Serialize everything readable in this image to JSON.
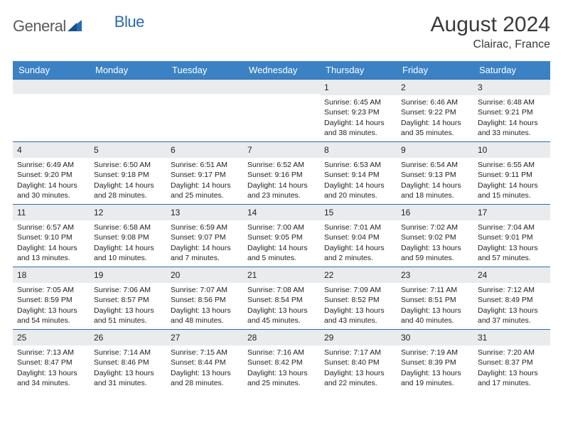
{
  "brand": {
    "part1": "General",
    "part2": "Blue"
  },
  "title": "August 2024",
  "location": "Clairac, France",
  "colors": {
    "header_bg": "#3b82c4",
    "band_bg": "#e9ebed",
    "band_border": "#2f6aa8",
    "text": "#222222",
    "logo_gray": "#5a5a5a",
    "logo_blue": "#2a6ab0"
  },
  "fonts": {
    "title_pt": 30,
    "location_pt": 16,
    "dayhead_pt": 13,
    "cell_pt": 10.5
  },
  "day_headers": [
    "Sunday",
    "Monday",
    "Tuesday",
    "Wednesday",
    "Thursday",
    "Friday",
    "Saturday"
  ],
  "weeks": [
    [
      null,
      null,
      null,
      null,
      {
        "n": "1",
        "sunrise": "Sunrise: 6:45 AM",
        "sunset": "Sunset: 9:23 PM",
        "d1": "Daylight: 14 hours",
        "d2": "and 38 minutes."
      },
      {
        "n": "2",
        "sunrise": "Sunrise: 6:46 AM",
        "sunset": "Sunset: 9:22 PM",
        "d1": "Daylight: 14 hours",
        "d2": "and 35 minutes."
      },
      {
        "n": "3",
        "sunrise": "Sunrise: 6:48 AM",
        "sunset": "Sunset: 9:21 PM",
        "d1": "Daylight: 14 hours",
        "d2": "and 33 minutes."
      }
    ],
    [
      {
        "n": "4",
        "sunrise": "Sunrise: 6:49 AM",
        "sunset": "Sunset: 9:20 PM",
        "d1": "Daylight: 14 hours",
        "d2": "and 30 minutes."
      },
      {
        "n": "5",
        "sunrise": "Sunrise: 6:50 AM",
        "sunset": "Sunset: 9:18 PM",
        "d1": "Daylight: 14 hours",
        "d2": "and 28 minutes."
      },
      {
        "n": "6",
        "sunrise": "Sunrise: 6:51 AM",
        "sunset": "Sunset: 9:17 PM",
        "d1": "Daylight: 14 hours",
        "d2": "and 25 minutes."
      },
      {
        "n": "7",
        "sunrise": "Sunrise: 6:52 AM",
        "sunset": "Sunset: 9:16 PM",
        "d1": "Daylight: 14 hours",
        "d2": "and 23 minutes."
      },
      {
        "n": "8",
        "sunrise": "Sunrise: 6:53 AM",
        "sunset": "Sunset: 9:14 PM",
        "d1": "Daylight: 14 hours",
        "d2": "and 20 minutes."
      },
      {
        "n": "9",
        "sunrise": "Sunrise: 6:54 AM",
        "sunset": "Sunset: 9:13 PM",
        "d1": "Daylight: 14 hours",
        "d2": "and 18 minutes."
      },
      {
        "n": "10",
        "sunrise": "Sunrise: 6:55 AM",
        "sunset": "Sunset: 9:11 PM",
        "d1": "Daylight: 14 hours",
        "d2": "and 15 minutes."
      }
    ],
    [
      {
        "n": "11",
        "sunrise": "Sunrise: 6:57 AM",
        "sunset": "Sunset: 9:10 PM",
        "d1": "Daylight: 14 hours",
        "d2": "and 13 minutes."
      },
      {
        "n": "12",
        "sunrise": "Sunrise: 6:58 AM",
        "sunset": "Sunset: 9:08 PM",
        "d1": "Daylight: 14 hours",
        "d2": "and 10 minutes."
      },
      {
        "n": "13",
        "sunrise": "Sunrise: 6:59 AM",
        "sunset": "Sunset: 9:07 PM",
        "d1": "Daylight: 14 hours",
        "d2": "and 7 minutes."
      },
      {
        "n": "14",
        "sunrise": "Sunrise: 7:00 AM",
        "sunset": "Sunset: 9:05 PM",
        "d1": "Daylight: 14 hours",
        "d2": "and 5 minutes."
      },
      {
        "n": "15",
        "sunrise": "Sunrise: 7:01 AM",
        "sunset": "Sunset: 9:04 PM",
        "d1": "Daylight: 14 hours",
        "d2": "and 2 minutes."
      },
      {
        "n": "16",
        "sunrise": "Sunrise: 7:02 AM",
        "sunset": "Sunset: 9:02 PM",
        "d1": "Daylight: 13 hours",
        "d2": "and 59 minutes."
      },
      {
        "n": "17",
        "sunrise": "Sunrise: 7:04 AM",
        "sunset": "Sunset: 9:01 PM",
        "d1": "Daylight: 13 hours",
        "d2": "and 57 minutes."
      }
    ],
    [
      {
        "n": "18",
        "sunrise": "Sunrise: 7:05 AM",
        "sunset": "Sunset: 8:59 PM",
        "d1": "Daylight: 13 hours",
        "d2": "and 54 minutes."
      },
      {
        "n": "19",
        "sunrise": "Sunrise: 7:06 AM",
        "sunset": "Sunset: 8:57 PM",
        "d1": "Daylight: 13 hours",
        "d2": "and 51 minutes."
      },
      {
        "n": "20",
        "sunrise": "Sunrise: 7:07 AM",
        "sunset": "Sunset: 8:56 PM",
        "d1": "Daylight: 13 hours",
        "d2": "and 48 minutes."
      },
      {
        "n": "21",
        "sunrise": "Sunrise: 7:08 AM",
        "sunset": "Sunset: 8:54 PM",
        "d1": "Daylight: 13 hours",
        "d2": "and 45 minutes."
      },
      {
        "n": "22",
        "sunrise": "Sunrise: 7:09 AM",
        "sunset": "Sunset: 8:52 PM",
        "d1": "Daylight: 13 hours",
        "d2": "and 43 minutes."
      },
      {
        "n": "23",
        "sunrise": "Sunrise: 7:11 AM",
        "sunset": "Sunset: 8:51 PM",
        "d1": "Daylight: 13 hours",
        "d2": "and 40 minutes."
      },
      {
        "n": "24",
        "sunrise": "Sunrise: 7:12 AM",
        "sunset": "Sunset: 8:49 PM",
        "d1": "Daylight: 13 hours",
        "d2": "and 37 minutes."
      }
    ],
    [
      {
        "n": "25",
        "sunrise": "Sunrise: 7:13 AM",
        "sunset": "Sunset: 8:47 PM",
        "d1": "Daylight: 13 hours",
        "d2": "and 34 minutes."
      },
      {
        "n": "26",
        "sunrise": "Sunrise: 7:14 AM",
        "sunset": "Sunset: 8:46 PM",
        "d1": "Daylight: 13 hours",
        "d2": "and 31 minutes."
      },
      {
        "n": "27",
        "sunrise": "Sunrise: 7:15 AM",
        "sunset": "Sunset: 8:44 PM",
        "d1": "Daylight: 13 hours",
        "d2": "and 28 minutes."
      },
      {
        "n": "28",
        "sunrise": "Sunrise: 7:16 AM",
        "sunset": "Sunset: 8:42 PM",
        "d1": "Daylight: 13 hours",
        "d2": "and 25 minutes."
      },
      {
        "n": "29",
        "sunrise": "Sunrise: 7:17 AM",
        "sunset": "Sunset: 8:40 PM",
        "d1": "Daylight: 13 hours",
        "d2": "and 22 minutes."
      },
      {
        "n": "30",
        "sunrise": "Sunrise: 7:19 AM",
        "sunset": "Sunset: 8:39 PM",
        "d1": "Daylight: 13 hours",
        "d2": "and 19 minutes."
      },
      {
        "n": "31",
        "sunrise": "Sunrise: 7:20 AM",
        "sunset": "Sunset: 8:37 PM",
        "d1": "Daylight: 13 hours",
        "d2": "and 17 minutes."
      }
    ]
  ]
}
